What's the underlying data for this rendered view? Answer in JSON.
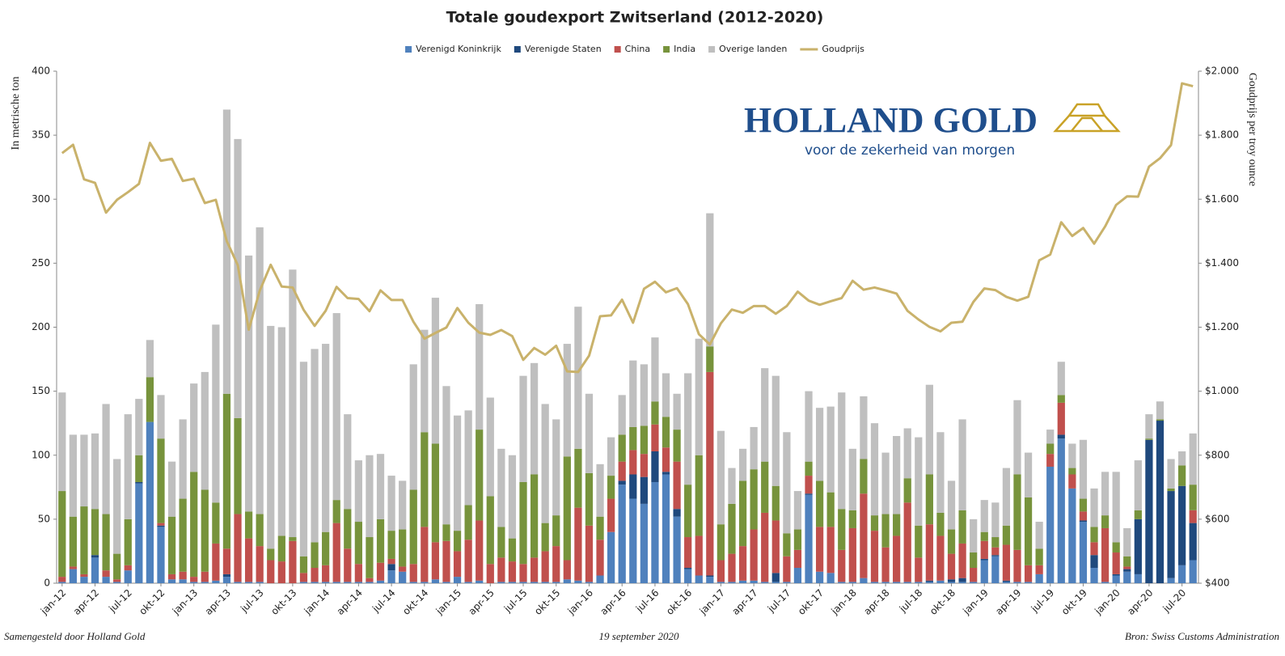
{
  "chart_data": {
    "type": "bar",
    "stacked": true,
    "title": "Totale goudexport Zwitserland (2012-2020)",
    "y_label": "In metrische ton",
    "y2_label": "Goudprijs per troy ounce",
    "logo": {
      "name": "HOLLAND GOLD",
      "tagline": "voor de zekerheid van morgen"
    },
    "footer": {
      "left": "Samengesteld door Holland Gold",
      "center": "19 september 2020",
      "right": "Bron: Swiss Customs Administration"
    },
    "categories": [
      "jan-12",
      null,
      null,
      "apr-12",
      null,
      null,
      "jul-12",
      null,
      null,
      "okt-12",
      null,
      null,
      "jan-13",
      null,
      null,
      "apr-13",
      null,
      null,
      "jul-13",
      null,
      null,
      "okt-13",
      null,
      null,
      "jan-14",
      null,
      null,
      "apr-14",
      null,
      null,
      "jul-14",
      null,
      null,
      "okt-14",
      null,
      null,
      "jan-15",
      null,
      null,
      "apr-15",
      null,
      null,
      "jul-15",
      null,
      null,
      "okt-15",
      null,
      null,
      "jan-16",
      null,
      null,
      "apr-16",
      null,
      null,
      "jul-16",
      null,
      null,
      "okt-16",
      null,
      null,
      "jan-17",
      null,
      null,
      "apr-17",
      null,
      null,
      "jul-17",
      null,
      null,
      "okt-17",
      null,
      null,
      "jan-18",
      null,
      null,
      "apr-18",
      null,
      null,
      "jul-18",
      null,
      null,
      "okt-18",
      null,
      null,
      "jan-19",
      null,
      null,
      "apr-19",
      null,
      null,
      "jul-19",
      null,
      null,
      "okt-19",
      null,
      null,
      "jan-20",
      null,
      null,
      "apr-20",
      null,
      null,
      "jul-20",
      null
    ],
    "series": [
      {
        "name": "Verenigd Koninkrijk",
        "color": "#4f81bd",
        "values": [
          1,
          11,
          5,
          20,
          5,
          1,
          10,
          78,
          126,
          44,
          3,
          3,
          1,
          1,
          2,
          5,
          1,
          1,
          1,
          0,
          0,
          0,
          1,
          1,
          1,
          1,
          1,
          1,
          1,
          2,
          10,
          9,
          1,
          1,
          3,
          1,
          5,
          1,
          2,
          0,
          1,
          1,
          1,
          1,
          1,
          1,
          3,
          2,
          1,
          6,
          40,
          77,
          66,
          62,
          79,
          85,
          52,
          11,
          6,
          5,
          1,
          1,
          2,
          2,
          1,
          1,
          1,
          12,
          69,
          9,
          8,
          1,
          1,
          4,
          1,
          1,
          1,
          1,
          1,
          1,
          2,
          1,
          1,
          1,
          18,
          21,
          1,
          1,
          1,
          7,
          91,
          113,
          74,
          48,
          12,
          1,
          6,
          9,
          7,
          0,
          0,
          4,
          14,
          18
        ]
      },
      {
        "name": "Verenigde Staten",
        "color": "#1f497d",
        "values": [
          0,
          0,
          0,
          2,
          0,
          0,
          0,
          1,
          0,
          1,
          0,
          0,
          0,
          0,
          0,
          2,
          0,
          0,
          0,
          0,
          0,
          0,
          0,
          0,
          0,
          0,
          0,
          0,
          0,
          0,
          5,
          0,
          0,
          0,
          0,
          0,
          0,
          0,
          0,
          0,
          0,
          0,
          0,
          0,
          0,
          0,
          0,
          0,
          0,
          0,
          0,
          3,
          19,
          21,
          24,
          2,
          6,
          1,
          0,
          1,
          0,
          0,
          0,
          0,
          0,
          7,
          0,
          0,
          1,
          0,
          0,
          0,
          0,
          0,
          0,
          0,
          0,
          0,
          0,
          1,
          0,
          2,
          3,
          0,
          1,
          1,
          1,
          0,
          0,
          0,
          0,
          3,
          0,
          1,
          10,
          0,
          1,
          2,
          43,
          112,
          127,
          68,
          62,
          29
        ]
      },
      {
        "name": "China",
        "color": "#c0504d",
        "values": [
          4,
          2,
          2,
          0,
          5,
          2,
          4,
          0,
          0,
          2,
          4,
          6,
          4,
          8,
          29,
          20,
          53,
          34,
          28,
          18,
          17,
          33,
          7,
          11,
          13,
          46,
          26,
          14,
          3,
          14,
          4,
          4,
          14,
          43,
          29,
          32,
          20,
          33,
          47,
          15,
          19,
          16,
          14,
          19,
          24,
          28,
          15,
          57,
          44,
          28,
          26,
          15,
          19,
          18,
          21,
          19,
          37,
          24,
          31,
          159,
          17,
          22,
          27,
          40,
          54,
          41,
          20,
          14,
          14,
          35,
          36,
          25,
          42,
          66,
          40,
          27,
          36,
          62,
          19,
          44,
          35,
          20,
          27,
          11,
          14,
          6,
          28,
          25,
          13,
          7,
          10,
          25,
          11,
          7,
          10,
          42,
          17,
          2,
          0,
          0,
          0,
          0,
          0,
          10
        ]
      },
      {
        "name": "India",
        "color": "#77933c",
        "values": [
          67,
          39,
          53,
          36,
          44,
          20,
          36,
          21,
          35,
          66,
          45,
          57,
          82,
          64,
          32,
          121,
          75,
          21,
          25,
          9,
          20,
          3,
          13,
          20,
          26,
          18,
          31,
          33,
          32,
          34,
          22,
          29,
          58,
          74,
          77,
          13,
          16,
          27,
          71,
          53,
          24,
          18,
          64,
          65,
          22,
          24,
          81,
          46,
          41,
          18,
          18,
          21,
          18,
          22,
          18,
          24,
          25,
          41,
          63,
          20,
          28,
          39,
          51,
          47,
          40,
          27,
          18,
          16,
          11,
          36,
          27,
          32,
          14,
          27,
          12,
          26,
          17,
          19,
          25,
          39,
          18,
          19,
          26,
          12,
          7,
          8,
          15,
          59,
          53,
          13,
          8,
          6,
          5,
          10,
          12,
          10,
          8,
          8,
          7,
          1,
          1,
          2,
          16,
          20
        ]
      },
      {
        "name": "Overige landen",
        "color": "#bfbfbf",
        "values": [
          77,
          64,
          56,
          59,
          86,
          74,
          82,
          44,
          29,
          34,
          43,
          62,
          69,
          92,
          139,
          222,
          218,
          200,
          224,
          174,
          163,
          209,
          152,
          151,
          147,
          146,
          74,
          48,
          64,
          51,
          43,
          38,
          98,
          80,
          114,
          108,
          90,
          74,
          98,
          77,
          61,
          65,
          83,
          87,
          93,
          75,
          88,
          111,
          62,
          41,
          30,
          31,
          52,
          48,
          50,
          34,
          28,
          87,
          91,
          104,
          73,
          28,
          25,
          33,
          73,
          86,
          79,
          30,
          55,
          57,
          67,
          91,
          48,
          49,
          72,
          48,
          61,
          39,
          69,
          70,
          63,
          38,
          71,
          26,
          25,
          27,
          45,
          58,
          35,
          21,
          11,
          26,
          19,
          46,
          30,
          34,
          55,
          22,
          39,
          19,
          14,
          23,
          11,
          40
        ]
      },
      {
        "name": "Goudprijs",
        "color": "#c9b26b",
        "type": "line",
        "axis": "y2",
        "values": [
          1744,
          1770,
          1662,
          1651,
          1558,
          1598,
          1622,
          1648,
          1776,
          1720,
          1726,
          1657,
          1664,
          1588,
          1598,
          1469,
          1394,
          1192,
          1314,
          1395,
          1327,
          1324,
          1254,
          1204,
          1251,
          1326,
          1291,
          1288,
          1250,
          1315,
          1285,
          1285,
          1217,
          1164,
          1182,
          1199,
          1260,
          1214,
          1183,
          1176,
          1191,
          1172,
          1098,
          1135,
          1114,
          1142,
          1062,
          1060,
          1111,
          1234,
          1237,
          1286,
          1214,
          1320,
          1342,
          1309,
          1322,
          1272,
          1178,
          1146,
          1212,
          1255,
          1245,
          1266,
          1266,
          1242,
          1266,
          1311,
          1283,
          1270,
          1281,
          1291,
          1345,
          1317,
          1324,
          1315,
          1305,
          1251,
          1224,
          1201,
          1187,
          1214,
          1217,
          1279,
          1321,
          1316,
          1295,
          1283,
          1295,
          1409,
          1427,
          1528,
          1485,
          1510,
          1461,
          1515,
          1582,
          1609,
          1608,
          1702,
          1728,
          1769,
          1962,
          1953
        ]
      }
    ],
    "ylim": [
      0,
      400
    ],
    "yticks": [
      0,
      50,
      100,
      150,
      200,
      250,
      300,
      350,
      400
    ],
    "y2lim": [
      400,
      2000
    ],
    "y2ticks": [
      {
        "value": 400,
        "label": "$400"
      },
      {
        "value": 600,
        "label": "$600"
      },
      {
        "value": 800,
        "label": "$800"
      },
      {
        "value": 1000,
        "label": "$1.000"
      },
      {
        "value": 1200,
        "label": "$1.200"
      },
      {
        "value": 1400,
        "label": "$1.400"
      },
      {
        "value": 1600,
        "label": "$1.600"
      },
      {
        "value": 1800,
        "label": "$1.800"
      },
      {
        "value": 2000,
        "label": "$2.000"
      }
    ],
    "grid": false,
    "legend": "top"
  }
}
